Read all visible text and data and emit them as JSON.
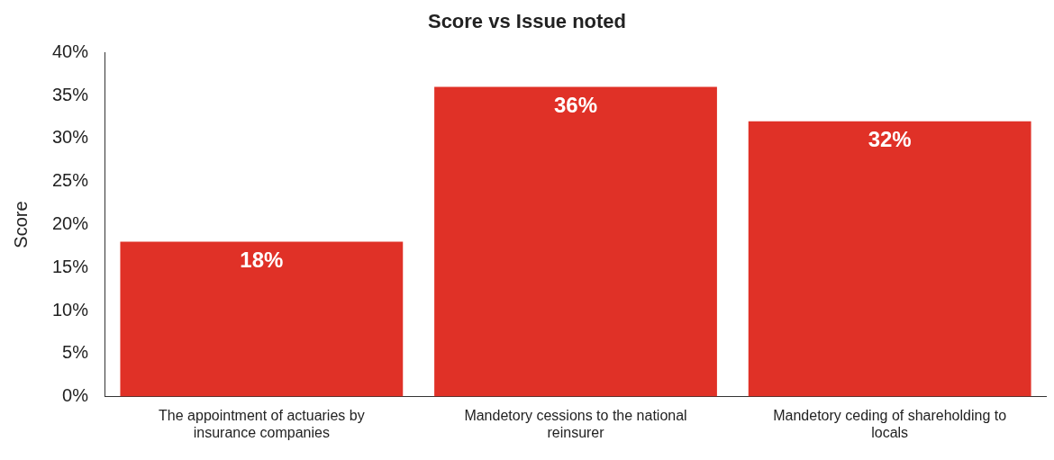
{
  "chart_data": {
    "type": "bar",
    "title": "Score vs Issue noted",
    "ylabel": "Score",
    "categories": [
      "The appointment of actuaries by insurance companies",
      "Mandetory cessions to the national reinsurer",
      "Mandetory ceding of shareholding to locals"
    ],
    "values": [
      18,
      36,
      32
    ],
    "color": "#e03127",
    "value_labels": [
      "18%",
      "36%",
      "32%"
    ],
    "ylim": [
      0,
      40
    ],
    "yticks": [
      {
        "value": 0,
        "label": "0%"
      },
      {
        "value": 5,
        "label": "5%"
      },
      {
        "value": 10,
        "label": "10%"
      },
      {
        "value": 15,
        "label": "15%"
      },
      {
        "value": 20,
        "label": "20%"
      },
      {
        "value": 25,
        "label": "25%"
      },
      {
        "value": 30,
        "label": "30%"
      },
      {
        "value": 35,
        "label": "35%"
      },
      {
        "value": 40,
        "label": "40%"
      }
    ],
    "grid": false,
    "legend": false
  }
}
